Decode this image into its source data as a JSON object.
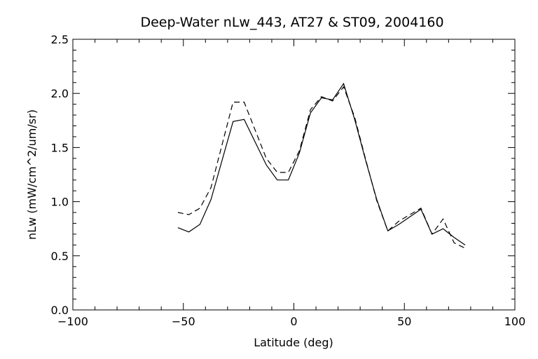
{
  "chart_data": {
    "type": "line",
    "title": "Deep-Water nLw_443, AT27 & ST09, 2004160",
    "xlabel": "Latitude (deg)",
    "ylabel": "nLw (mW/cm^2/um/sr)",
    "xlim": [
      -100,
      100
    ],
    "ylim": [
      0.0,
      2.5
    ],
    "xticks": [
      -100,
      -50,
      0,
      50,
      100
    ],
    "xtick_labels": [
      "−100",
      "−50",
      "0",
      "50",
      "100"
    ],
    "yticks": [
      0.0,
      0.5,
      1.0,
      1.5,
      2.0,
      2.5
    ],
    "ytick_labels": [
      "0.0",
      "0.5",
      "1.0",
      "1.5",
      "2.0",
      "2.5"
    ],
    "grid": false,
    "series": [
      {
        "style": "solid",
        "color": "#000000",
        "x": [
          -52.5,
          -47.5,
          -42.5,
          -37.5,
          -27.5,
          -22.5,
          -12.5,
          -7.5,
          -2.5,
          2.5,
          7.5,
          12.5,
          17.5,
          22.5,
          27.5,
          32.5,
          37.5,
          42.5,
          47.5,
          52.5,
          57.5,
          62.5,
          67.5,
          72.5,
          77.5
        ],
        "y": [
          0.76,
          0.72,
          0.79,
          1.02,
          1.74,
          1.76,
          1.34,
          1.2,
          1.2,
          1.45,
          1.82,
          1.96,
          1.94,
          2.09,
          1.76,
          1.38,
          1.02,
          0.73,
          0.79,
          0.86,
          0.93,
          0.7,
          0.75,
          0.67,
          0.6
        ]
      },
      {
        "style": "dashed",
        "color": "#000000",
        "x": [
          -52.5,
          -47.5,
          -42.5,
          -37.5,
          -27.5,
          -22.5,
          -12.5,
          -7.5,
          -2.5,
          2.5,
          7.5,
          12.5,
          17.5,
          22.5,
          27.5,
          32.5,
          37.5,
          42.5,
          47.5,
          52.5,
          57.5,
          62.5,
          67.5,
          72.5,
          77.5
        ],
        "y": [
          0.9,
          0.88,
          0.94,
          1.13,
          1.92,
          1.92,
          1.4,
          1.27,
          1.27,
          1.47,
          1.85,
          1.97,
          1.93,
          2.06,
          1.78,
          1.39,
          1.01,
          0.73,
          0.82,
          0.88,
          0.94,
          0.7,
          0.84,
          0.62,
          0.57
        ]
      }
    ]
  }
}
